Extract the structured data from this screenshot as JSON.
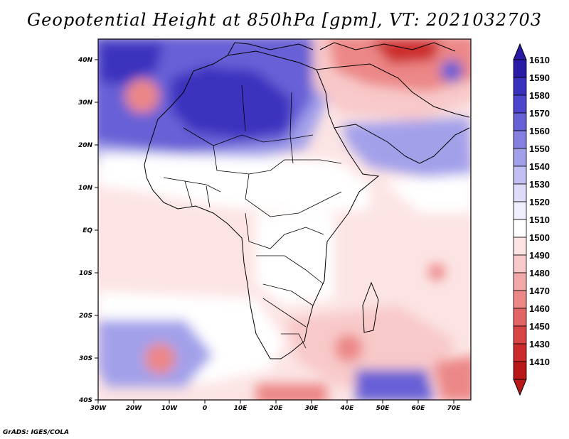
{
  "title": "Geopotential Height at 850hPa [gpm], VT: 2021032703",
  "footer": "GrADS: IGES/COLA",
  "axes": {
    "x_ticks": [
      "30W",
      "20W",
      "10W",
      "0",
      "10E",
      "20E",
      "30E",
      "40E",
      "50E",
      "60E",
      "70E"
    ],
    "y_ticks": [
      "40N",
      "30N",
      "20N",
      "10N",
      "EQ",
      "10S",
      "20S",
      "30S",
      "40S"
    ]
  },
  "colorbar": {
    "levels": [
      "1610",
      "1590",
      "1580",
      "1570",
      "1560",
      "1550",
      "1540",
      "1530",
      "1520",
      "1510",
      "1500",
      "1490",
      "1480",
      "1470",
      "1460",
      "1450",
      "1430",
      "1410"
    ],
    "colors": [
      "#2a1aa8",
      "#3a30be",
      "#4d46cc",
      "#6860d6",
      "#8580e0",
      "#a3a0ea",
      "#c2c0f2",
      "#dcdbf8",
      "#eeeefc",
      "#ffffff",
      "#fce4e4",
      "#f8c9c9",
      "#f2a8a8",
      "#ec8787",
      "#e36464",
      "#d94444",
      "#cc2b2b",
      "#b81818"
    ]
  },
  "field_colors": {
    "high_1": "#3a30be",
    "high_2": "#6860d6",
    "high_3": "#a3a0ea",
    "low_1": "#f8c9c9",
    "low_2": "#ec8787",
    "low_3": "#cc2b2b"
  }
}
